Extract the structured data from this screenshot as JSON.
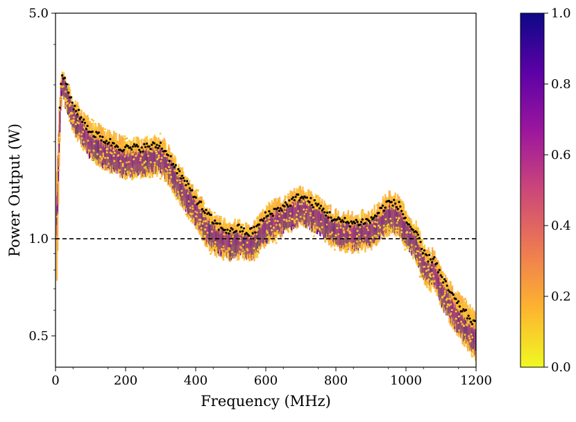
{
  "chart_data": {
    "type": "scatter",
    "xlabel": "Frequency (MHz)",
    "ylabel": "Power Output (W)",
    "xlim": [
      0,
      1200
    ],
    "ylim": [
      0.4,
      5.0
    ],
    "yscale": "log",
    "x_ticks": [
      {
        "value": 0,
        "label": "0"
      },
      {
        "value": 200,
        "label": "200"
      },
      {
        "value": 400,
        "label": "400"
      },
      {
        "value": 600,
        "label": "600"
      },
      {
        "value": 800,
        "label": "800"
      },
      {
        "value": 1000,
        "label": "1000"
      },
      {
        "value": 1200,
        "label": "1200"
      }
    ],
    "y_ticks": [
      {
        "value": 0.5,
        "label": "0.5"
      },
      {
        "value": 1.0,
        "label": "1.0"
      },
      {
        "value": 5.0,
        "label": "5.0"
      }
    ],
    "reference_line": {
      "y": 1.0,
      "style": "dashed",
      "color": "#000000"
    },
    "colorbar": {
      "colormap": "plasma",
      "range": [
        0.0,
        1.0
      ],
      "ticks": [
        {
          "value": 0.0,
          "label": "0.0"
        },
        {
          "value": 0.2,
          "label": "0.2"
        },
        {
          "value": 0.4,
          "label": "0.4"
        },
        {
          "value": 0.6,
          "label": "0.6"
        },
        {
          "value": 0.8,
          "label": "0.8"
        },
        {
          "value": 1.0,
          "label": "1.0"
        }
      ],
      "stops": [
        "#f0f921",
        "#fdb42f",
        "#ed7953",
        "#cc4778",
        "#9c179e",
        "#5c01a6",
        "#0d0887"
      ]
    },
    "envelope": {
      "description": "Power vs frequency; colored band spans low (yellow) to high (purple) colormap values, black points mark the median trace",
      "x": [
        5,
        10,
        15,
        20,
        30,
        50,
        75,
        100,
        150,
        200,
        250,
        300,
        330,
        360,
        400,
        430,
        460,
        500,
        520,
        550,
        570,
        600,
        650,
        700,
        750,
        800,
        850,
        900,
        950,
        980,
        1000,
        1030,
        1050,
        1070,
        1080,
        1100,
        1150,
        1200
      ],
      "upper": [
        1.6,
        2.5,
        3.1,
        3.35,
        3.1,
        2.7,
        2.45,
        2.28,
        2.12,
        2.0,
        2.0,
        2.05,
        1.85,
        1.62,
        1.38,
        1.25,
        1.15,
        1.1,
        1.13,
        1.08,
        1.12,
        1.25,
        1.32,
        1.42,
        1.32,
        1.2,
        1.18,
        1.2,
        1.36,
        1.33,
        1.2,
        1.1,
        0.95,
        0.9,
        0.92,
        0.8,
        0.66,
        0.58
      ],
      "center": [
        1.2,
        2.0,
        2.8,
        3.15,
        2.85,
        2.45,
        2.2,
        2.0,
        1.85,
        1.75,
        1.78,
        1.82,
        1.65,
        1.45,
        1.25,
        1.1,
        1.02,
        0.98,
        1.0,
        0.97,
        1.0,
        1.1,
        1.18,
        1.26,
        1.18,
        1.07,
        1.05,
        1.07,
        1.2,
        1.18,
        1.07,
        0.97,
        0.84,
        0.8,
        0.82,
        0.7,
        0.57,
        0.49
      ],
      "lower": [
        0.75,
        1.6,
        2.45,
        2.85,
        2.55,
        2.18,
        1.95,
        1.78,
        1.65,
        1.55,
        1.57,
        1.6,
        1.45,
        1.27,
        1.1,
        0.96,
        0.9,
        0.86,
        0.88,
        0.86,
        0.88,
        0.97,
        1.04,
        1.12,
        1.04,
        0.94,
        0.92,
        0.94,
        1.05,
        1.03,
        0.95,
        0.86,
        0.74,
        0.7,
        0.72,
        0.62,
        0.5,
        0.43
      ],
      "median": [
        1.4,
        2.2,
        3.0,
        3.28,
        3.0,
        2.6,
        2.35,
        2.15,
        2.0,
        1.9,
        1.92,
        1.95,
        1.76,
        1.55,
        1.34,
        1.2,
        1.1,
        1.05,
        1.08,
        1.04,
        1.07,
        1.18,
        1.26,
        1.36,
        1.26,
        1.14,
        1.12,
        1.14,
        1.3,
        1.27,
        1.14,
        1.03,
        0.9,
        0.86,
        0.88,
        0.76,
        0.62,
        0.54
      ]
    }
  }
}
